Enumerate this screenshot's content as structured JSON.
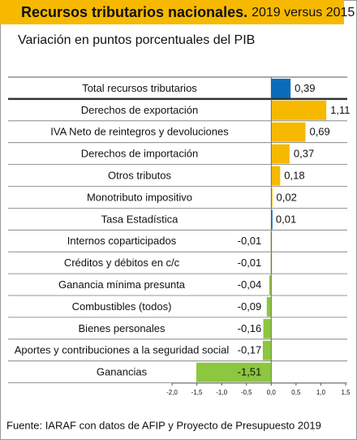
{
  "chart_data": {
    "type": "hbar",
    "title": "Recursos tributarios nacionales.",
    "title_note": "2019 versus 2015",
    "subtitle": "Variación en puntos porcentuales del PIB",
    "source": "Fuente: IARAF con datos de AFIP y Proyecto de Presupuesto 2019",
    "categories": [
      "Total recursos tributarios",
      "Derechos de exportación",
      "IVA Neto de reintegros y devoluciones",
      "Derechos de importación",
      "Otros tributos",
      "Monotributo impositivo",
      "Tasa Estadística",
      "Internos coparticipados",
      "Créditos y débitos en c/c",
      "Ganancia mínima presunta",
      "Combustibles (todos)",
      "Bienes personales",
      "Aportes y contribuciones a la seguridad social",
      "Ganancias"
    ],
    "values": [
      0.39,
      1.11,
      0.69,
      0.37,
      0.18,
      0.02,
      0.01,
      -0.01,
      -0.01,
      -0.04,
      -0.09,
      -0.16,
      -0.17,
      -1.51
    ],
    "value_labels": [
      "0,39",
      "1,11",
      "0,69",
      "0,37",
      "0,18",
      "0,02",
      "0,01",
      "-0,01",
      "-0,01",
      "-0,04",
      "-0,09",
      "-0,16",
      "-0,17",
      "-1,51"
    ],
    "colors": [
      "#0a6cb8",
      "#f6b900",
      "#f6b900",
      "#f6b900",
      "#f6b900",
      "#f6b900",
      "#0a6cb8",
      "#8dc63f",
      "#8dc63f",
      "#8dc63f",
      "#8dc63f",
      "#8dc63f",
      "#8dc63f",
      "#8dc63f"
    ],
    "xlim": [
      -2.0,
      1.5
    ],
    "xticks": [
      {
        "value": -2.0,
        "label": "-2,0"
      },
      {
        "value": -1.5,
        "label": "-1,5"
      },
      {
        "value": -1.0,
        "label": "-1,0"
      },
      {
        "value": -0.5,
        "label": "-0,5"
      },
      {
        "value": 0.0,
        "label": "0,0"
      },
      {
        "value": 0.5,
        "label": "0,5"
      },
      {
        "value": 1.0,
        "label": "1,0"
      },
      {
        "value": 1.5,
        "label": "1,5"
      }
    ]
  }
}
